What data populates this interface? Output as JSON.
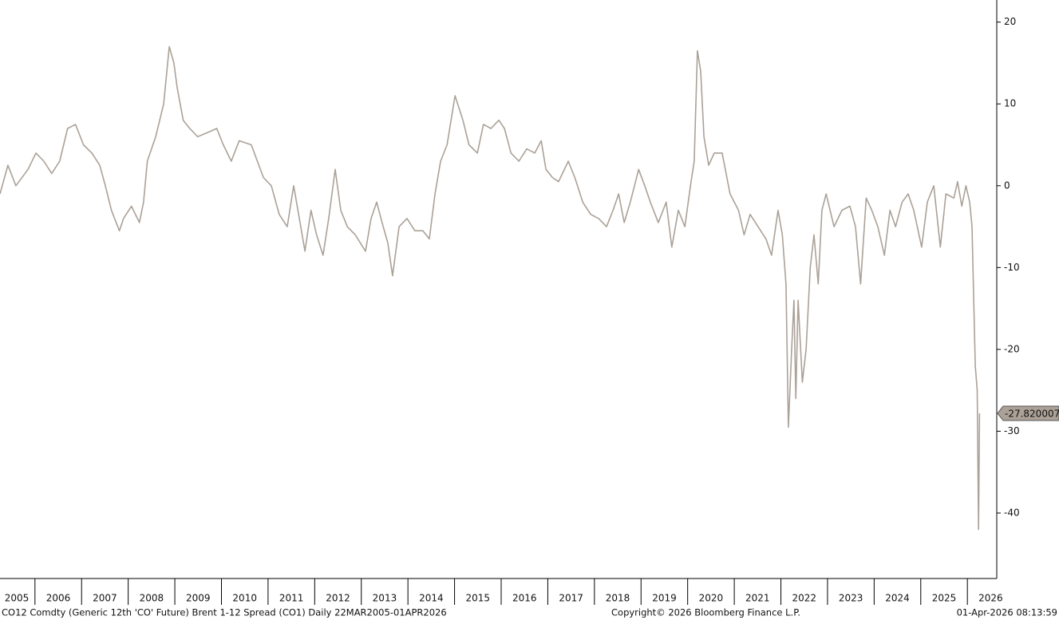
{
  "chart_data": {
    "type": "line",
    "title": "CO12 Comdty (Generic 12th 'CO' Future) Brent 1-12 Spread (CO1) Daily 22MAR2005-01APR2026",
    "copyright": "Copyright© 2026 Bloomberg Finance L.P.",
    "timestamp": "01-Apr-2026 08:13:59",
    "xlim": [
      2005.25,
      2026.63
    ],
    "xticks": [
      2005,
      2006,
      2007,
      2008,
      2009,
      2010,
      2011,
      2012,
      2013,
      2014,
      2015,
      2016,
      2017,
      2018,
      2019,
      2020,
      2021,
      2022,
      2023,
      2024,
      2025,
      2026
    ],
    "ylim": [
      -48,
      22.7
    ],
    "yticks": [
      -40,
      -30,
      -20,
      -10,
      0,
      10,
      20
    ],
    "y_axis_side": "right",
    "series": [
      {
        "name": "CO12 Comdty",
        "color": "#aba197",
        "x": [
          2005.25,
          2005.42,
          2005.59,
          2005.85,
          2006.02,
          2006.19,
          2006.36,
          2006.53,
          2006.7,
          2006.87,
          2007.04,
          2007.22,
          2007.39,
          2007.51,
          2007.64,
          2007.81,
          2007.9,
          2008.07,
          2008.24,
          2008.33,
          2008.41,
          2008.59,
          2008.76,
          2008.88,
          2008.98,
          2009.05,
          2009.18,
          2009.32,
          2009.49,
          2009.7,
          2009.9,
          2010.04,
          2010.21,
          2010.38,
          2010.64,
          2010.9,
          2011.07,
          2011.24,
          2011.41,
          2011.55,
          2011.67,
          2011.79,
          2011.92,
          2012.04,
          2012.18,
          2012.3,
          2012.44,
          2012.56,
          2012.7,
          2012.87,
          2013.09,
          2013.21,
          2013.33,
          2013.47,
          2013.57,
          2013.67,
          2013.81,
          2013.98,
          2014.15,
          2014.32,
          2014.46,
          2014.58,
          2014.7,
          2014.84,
          2015.01,
          2015.18,
          2015.31,
          2015.49,
          2015.62,
          2015.78,
          2015.95,
          2016.07,
          2016.21,
          2016.38,
          2016.55,
          2016.72,
          2016.86,
          2016.96,
          2017.1,
          2017.23,
          2017.44,
          2017.58,
          2017.75,
          2017.92,
          2018.09,
          2018.26,
          2018.4,
          2018.52,
          2018.64,
          2018.77,
          2018.95,
          2019.08,
          2019.2,
          2019.37,
          2019.54,
          2019.66,
          2019.8,
          2019.94,
          2020.06,
          2020.14,
          2020.21,
          2020.28,
          2020.35,
          2020.45,
          2020.57,
          2020.74,
          2020.91,
          2021.09,
          2021.21,
          2021.34,
          2021.51,
          2021.68,
          2021.8,
          2021.94,
          2022.03,
          2022.11,
          2022.16,
          2022.23,
          2022.28,
          2022.32,
          2022.37,
          2022.46,
          2022.54,
          2022.63,
          2022.71,
          2022.8,
          2022.88,
          2022.97,
          2023.14,
          2023.31,
          2023.48,
          2023.6,
          2023.71,
          2023.83,
          2023.95,
          2024.08,
          2024.22,
          2024.34,
          2024.46,
          2024.6,
          2024.73,
          2024.85,
          2025.02,
          2025.14,
          2025.28,
          2025.42,
          2025.54,
          2025.71,
          2025.79,
          2025.88,
          2025.97,
          2026.05,
          2026.1,
          2026.14,
          2026.17,
          2026.21,
          2026.24,
          2026.26
        ],
        "values": [
          -1,
          2.5,
          0,
          2,
          4,
          3,
          1.5,
          3,
          7,
          7.5,
          5,
          4,
          2.5,
          0,
          -3,
          -5.5,
          -4,
          -2.5,
          -4.5,
          -2,
          3,
          6,
          10,
          17,
          15,
          12,
          8,
          7,
          6,
          6.5,
          7,
          5,
          3,
          5.5,
          5,
          1,
          0,
          -3.5,
          -5,
          0,
          -4,
          -8,
          -3,
          -6,
          -8.5,
          -4,
          2,
          -3,
          -5,
          -6,
          -8,
          -4,
          -2,
          -5,
          -7,
          -11,
          -5,
          -4,
          -5.5,
          -5.5,
          -6.5,
          -1,
          3,
          5,
          11,
          8,
          5,
          4,
          7.5,
          7,
          8,
          7,
          4,
          3,
          4.5,
          4,
          5.5,
          2,
          1,
          0.5,
          3,
          1,
          -2,
          -3.5,
          -4,
          -5,
          -3,
          -1,
          -4.5,
          -2,
          2,
          0,
          -2,
          -4.5,
          -2,
          -7.5,
          -3,
          -5,
          0,
          3,
          16.5,
          14,
          6,
          2.5,
          4,
          4,
          -1,
          -3,
          -6,
          -3.5,
          -5,
          -6.5,
          -8.5,
          -3,
          -6,
          -12,
          -29.5,
          -20,
          -14,
          -26,
          -14,
          -24,
          -20,
          -10,
          -6,
          -12,
          -3,
          -1,
          -5,
          -3,
          -2.5,
          -5,
          -12,
          -1.5,
          -3,
          -5,
          -8.5,
          -3,
          -5,
          -2,
          -1,
          -3,
          -7.5,
          -2,
          0,
          -7.5,
          -1,
          -1.5,
          0.5,
          -2.5,
          0,
          -2,
          -5,
          -15,
          -22,
          -25,
          -42,
          -27.820007
        ]
      }
    ]
  }
}
